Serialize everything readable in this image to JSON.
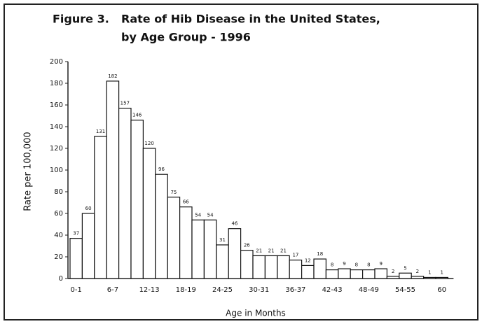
{
  "chart_data": {
    "type": "bar",
    "figure_label": "Figure 3.",
    "title": [
      "Rate of Hib Disease in the United States,",
      "by Age Group - 1996"
    ],
    "ylabel": "Rate per 100,000",
    "xlabel": "Age in Months",
    "categories": [
      "0-1",
      null,
      null,
      "6-7",
      null,
      null,
      "12-13",
      null,
      null,
      "18-19",
      null,
      null,
      "24-25",
      null,
      null,
      "30-31",
      null,
      null,
      "36-37",
      null,
      null,
      "42-43",
      null,
      null,
      "48-49",
      null,
      null,
      "54-55",
      null,
      null,
      "60"
    ],
    "values": [
      37,
      60,
      131,
      182,
      157,
      146,
      120,
      96,
      75,
      66,
      54,
      54,
      31,
      46,
      26,
      21,
      21,
      21,
      17,
      12,
      18,
      8,
      9,
      8,
      8,
      9,
      2,
      5,
      2,
      1,
      1
    ],
    "color": "#ffffff",
    "ylim": [
      0,
      200
    ],
    "yticks": [
      0,
      20,
      40,
      60,
      80,
      100,
      120,
      140,
      160,
      180,
      200
    ]
  }
}
